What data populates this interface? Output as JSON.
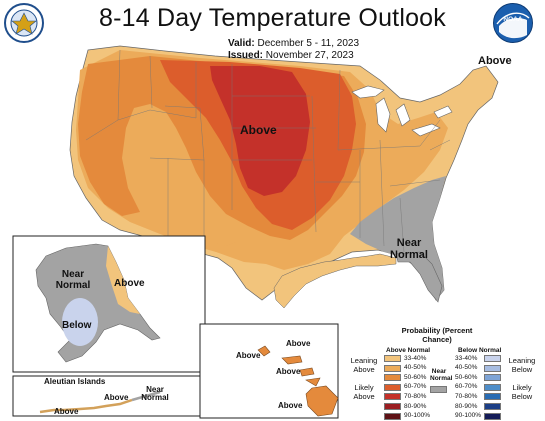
{
  "header": {
    "title": "8-14 Day Temperature Outlook",
    "valid_label": "Valid:",
    "valid_value": "December 5 - 11, 2023",
    "issued_label": "Issued:",
    "issued_value": "November 27, 2023"
  },
  "logos": {
    "left": {
      "name": "dept-of-commerce-seal",
      "color": "#1f4e8c"
    },
    "right": {
      "name": "noaa-logo",
      "text": "NOAA",
      "color": "#1b5fae"
    }
  },
  "map_labels": {
    "conus_above_center": "Above",
    "northeast_above": "Above",
    "southeast_near_normal": "Near Normal",
    "alaska_near_normal": "Near Normal",
    "alaska_above": "Above",
    "alaska_below": "Below",
    "aleutian_title": "Aleutian Islands",
    "aleutian_above_1": "Above",
    "aleutian_above_2": "Above",
    "aleutian_near_normal": "Near Normal",
    "hawaii_above_1": "Above",
    "hawaii_above_2": "Above",
    "hawaii_above_3": "Above",
    "hawaii_above_4": "Above"
  },
  "legend": {
    "title": "Probability (Percent Chance)",
    "above_header": "Above Normal",
    "below_header": "Below Normal",
    "near_header": "Near Normal",
    "leaning_above": "Leaning Above",
    "likely_above": "Likely Above",
    "leaning_below": "Leaning Below",
    "likely_below": "Likely Below",
    "bins": [
      "33-40%",
      "40-50%",
      "50-60%",
      "60-70%",
      "70-80%",
      "80-90%",
      "90-100%"
    ],
    "above_colors": [
      "#f2c47c",
      "#ecab5a",
      "#e48a3c",
      "#dc5d2c",
      "#c4312a",
      "#9b1e22",
      "#5e1216"
    ],
    "below_colors": [
      "#c9d3ec",
      "#a7bde2",
      "#7ea4d6",
      "#4f8ec9",
      "#2a6cb3",
      "#1c3f86",
      "#151c58"
    ],
    "near_color": "#a3a3a3"
  }
}
